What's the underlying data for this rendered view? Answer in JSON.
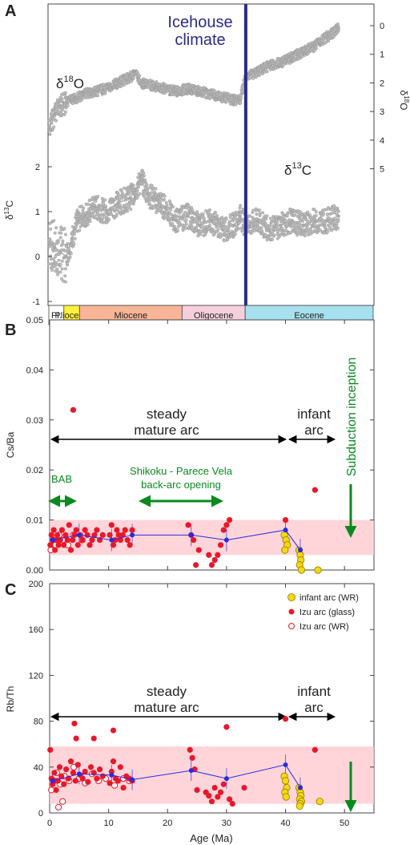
{
  "chart_data": [
    {
      "panel": "A",
      "type": "scatter",
      "title": "Icehouse climate",
      "series": [
        {
          "name": "δ18O",
          "sup": "18",
          "base": "O",
          "x": [
            0,
            1,
            2,
            3,
            4,
            5,
            6,
            8,
            10,
            12,
            14,
            15,
            16,
            18,
            20,
            22,
            24,
            26,
            28,
            30,
            32,
            33,
            34,
            36,
            38,
            40,
            42,
            44,
            46,
            48,
            50
          ],
          "y": [
            3.6,
            3.1,
            2.8,
            2.7,
            2.6,
            2.5,
            2.4,
            2.3,
            2.2,
            2.0,
            1.8,
            1.7,
            2.0,
            2.1,
            2.2,
            2.3,
            2.2,
            2.3,
            2.4,
            2.5,
            2.6,
            2.6,
            1.8,
            1.6,
            1.4,
            1.3,
            1.1,
            0.9,
            0.7,
            0.4,
            0.1
          ]
        },
        {
          "name": "δ13C",
          "sup": "13",
          "base": "C",
          "x": [
            0,
            1,
            2,
            3,
            4,
            5,
            6,
            8,
            10,
            12,
            14,
            15,
            16,
            17,
            18,
            20,
            22,
            24,
            26,
            28,
            30,
            32,
            33,
            34,
            36,
            38,
            40,
            42,
            44,
            46,
            48,
            50
          ],
          "y": [
            0.3,
            0.2,
            0.1,
            0.0,
            0.4,
            0.8,
            0.9,
            1.1,
            1.0,
            1.2,
            1.3,
            1.5,
            1.7,
            1.4,
            1.3,
            1.1,
            0.8,
            0.9,
            0.7,
            0.8,
            0.6,
            0.7,
            0.9,
            0.7,
            0.8,
            0.6,
            0.7,
            0.8,
            0.7,
            0.8,
            0.8,
            0.9
          ]
        }
      ],
      "icehouse_boundary_age": 34,
      "epochs": [
        {
          "label": "Pl.",
          "start": 0,
          "end": 2.6,
          "color": "#ffffff"
        },
        {
          "label": "Pliocene",
          "start": 2.6,
          "end": 5.3,
          "color": "#fff23b"
        },
        {
          "label": "Miocene",
          "start": 5.3,
          "end": 23,
          "color": "#f9b597"
        },
        {
          "label": "Oligocene",
          "start": 23,
          "end": 33.9,
          "color": "#f5d0dc"
        },
        {
          "label": "Eocene",
          "start": 33.9,
          "end": 56,
          "color": "#a7e0ee"
        }
      ],
      "right_ylabel": "δ18O",
      "left_ylabel": "δ13C",
      "right_ticks": [
        "0",
        "1",
        "2",
        "3",
        "4",
        "5"
      ],
      "left_ticks": [
        "-1",
        "0",
        "1",
        "2"
      ]
    },
    {
      "panel": "B",
      "type": "scatter",
      "ylabel": "Cs/Ba",
      "ylim": [
        0,
        0.05
      ],
      "xlim": [
        0,
        55
      ],
      "yticks": [
        "0.00",
        "0.01",
        "0.02",
        "0.03",
        "0.04",
        "0.05"
      ],
      "band": [
        0.003,
        0.01
      ],
      "annotations": {
        "steady": "steady",
        "mature": "mature arc",
        "infant1": "infant",
        "infant2": "arc",
        "bab": "BAB",
        "shikoku1": "Shikoku - Parece Vela",
        "shikoku2": "back-arc opening",
        "subduction": "Subduction inception"
      },
      "izu_glass": {
        "x": [
          0.1,
          0.3,
          0.5,
          0.7,
          0.9,
          1.1,
          1.3,
          1.5,
          1.8,
          2.1,
          2.4,
          2.7,
          3.0,
          3.3,
          3.6,
          3.9,
          4.2,
          4.5,
          4.8,
          5.2,
          5.6,
          6.0,
          6.4,
          6.8,
          7.2,
          7.6,
          8.0,
          8.5,
          9.0,
          10.2,
          10.5,
          10.8,
          11.1,
          11.4,
          11.7,
          12.0,
          12.4,
          12.8,
          13.2,
          13.6,
          14.0,
          23.5,
          24.0,
          24.4,
          24.8,
          25.3,
          27.0,
          27.5,
          28.0,
          28.5,
          29.0,
          29.5,
          30.0,
          30.5,
          40.0,
          45.0,
          4.0
        ],
        "y": [
          0.005,
          0.007,
          0.006,
          0.008,
          0.004,
          0.006,
          0.007,
          0.005,
          0.006,
          0.008,
          0.005,
          0.007,
          0.006,
          0.009,
          0.004,
          0.006,
          0.007,
          0.008,
          0.005,
          0.007,
          0.006,
          0.008,
          0.007,
          0.005,
          0.006,
          0.007,
          0.008,
          0.006,
          0.007,
          0.007,
          0.009,
          0.005,
          0.006,
          0.008,
          0.007,
          0.006,
          0.007,
          0.008,
          0.006,
          0.005,
          0.008,
          0.009,
          0.007,
          0.006,
          0.001,
          0.004,
          0.003,
          0.001,
          0.002,
          0.003,
          0.005,
          0.008,
          0.009,
          0.01,
          0.01,
          0.016,
          0.032
        ]
      },
      "izu_wr": {
        "x": [
          0.2,
          0.6,
          1.0,
          1.6,
          2.2,
          3.1,
          4.0,
          5.5
        ],
        "y": [
          0.004,
          0.006,
          0.005,
          0.007,
          0.006,
          0.005,
          0.007,
          0.006
        ]
      },
      "infant_wr": {
        "x": [
          39.8,
          40.1,
          40.3,
          39.9,
          42.3,
          42.5,
          42.6,
          42.4,
          42.7,
          45.5
        ],
        "y": [
          0.007,
          0.006,
          0.005,
          0.004,
          0.004,
          0.003,
          0.002,
          0.001,
          0.0,
          0.0
        ]
      },
      "avg_line": {
        "x": [
          0.5,
          5,
          10.5,
          14,
          24,
          30,
          40,
          42.5
        ],
        "y": [
          0.006,
          0.007,
          0.006,
          0.007,
          0.007,
          0.006,
          0.008,
          0.004
        ]
      }
    },
    {
      "panel": "C",
      "type": "scatter",
      "ylabel": "Rb/Th",
      "xlabel": "Age (Ma)",
      "ylim": [
        0,
        200
      ],
      "xlim": [
        0,
        55
      ],
      "yticks": [
        "0",
        "40",
        "80",
        "120",
        "160",
        "200"
      ],
      "xticks": [
        "0",
        "10",
        "20",
        "30",
        "40",
        "50"
      ],
      "band": [
        8,
        58
      ],
      "annotations": {
        "steady": "steady",
        "mature": "mature arc",
        "infant1": "infant",
        "infant2": "arc"
      },
      "legend": [
        {
          "label": "infant arc (WR)",
          "marker": "yellow"
        },
        {
          "label": "Izu arc (glass)",
          "marker": "red"
        },
        {
          "label": "Izu arc (WR)",
          "marker": "open"
        }
      ],
      "izu_glass": {
        "x": [
          0.1,
          0.3,
          0.5,
          0.8,
          1.1,
          1.4,
          1.7,
          2.0,
          2.4,
          2.8,
          3.2,
          3.6,
          4.0,
          4.4,
          4.8,
          5.2,
          5.6,
          6.0,
          6.5,
          7.0,
          7.5,
          8.0,
          8.5,
          9.0,
          10.2,
          10.5,
          10.8,
          11.2,
          11.6,
          12.0,
          12.5,
          13.0,
          13.5,
          14.0,
          23.8,
          24.2,
          24.6,
          25.0,
          26.5,
          27.0,
          27.5,
          28.0,
          28.5,
          29.0,
          29.5,
          30.0,
          30.5,
          31.0,
          33.0,
          40.0,
          45.0,
          4.2,
          4.5,
          7.5,
          10.8,
          1.0
        ],
        "y": [
          55,
          30,
          25,
          35,
          20,
          28,
          40,
          32,
          25,
          38,
          30,
          45,
          35,
          28,
          42,
          33,
          30,
          36,
          27,
          40,
          35,
          30,
          38,
          32,
          26,
          36,
          45,
          30,
          28,
          40,
          22,
          32,
          30,
          28,
          55,
          48,
          38,
          20,
          18,
          15,
          10,
          22,
          14,
          18,
          25,
          75,
          12,
          8,
          22,
          82,
          55,
          78,
          65,
          65,
          72,
          28
        ]
      },
      "izu_wr": {
        "x": [
          0.3,
          0.7,
          1.2,
          1.8,
          2.5,
          3.3,
          4.1,
          5.0,
          6.0,
          7.2,
          8.3,
          9.5,
          11.0,
          12.5,
          13.5,
          1.5,
          2.2
        ],
        "y": [
          20,
          28,
          35,
          25,
          32,
          28,
          40,
          30,
          26,
          34,
          28,
          30,
          24,
          30,
          28,
          5,
          10
        ]
      },
      "infant_wr": {
        "x": [
          39.8,
          40.0,
          40.2,
          39.9,
          40.1,
          42.3,
          42.5,
          42.6,
          42.4,
          42.7,
          42.5,
          42.4,
          45.8
        ],
        "y": [
          32,
          28,
          22,
          18,
          14,
          22,
          18,
          15,
          12,
          10,
          8,
          6,
          10
        ]
      },
      "avg_line": {
        "x": [
          0.5,
          5,
          10.5,
          14,
          24,
          30,
          40,
          42.5
        ],
        "y": [
          28,
          34,
          33,
          29,
          37,
          30,
          42,
          22
        ]
      }
    }
  ],
  "panel_labels": [
    "A",
    "B",
    "C"
  ]
}
